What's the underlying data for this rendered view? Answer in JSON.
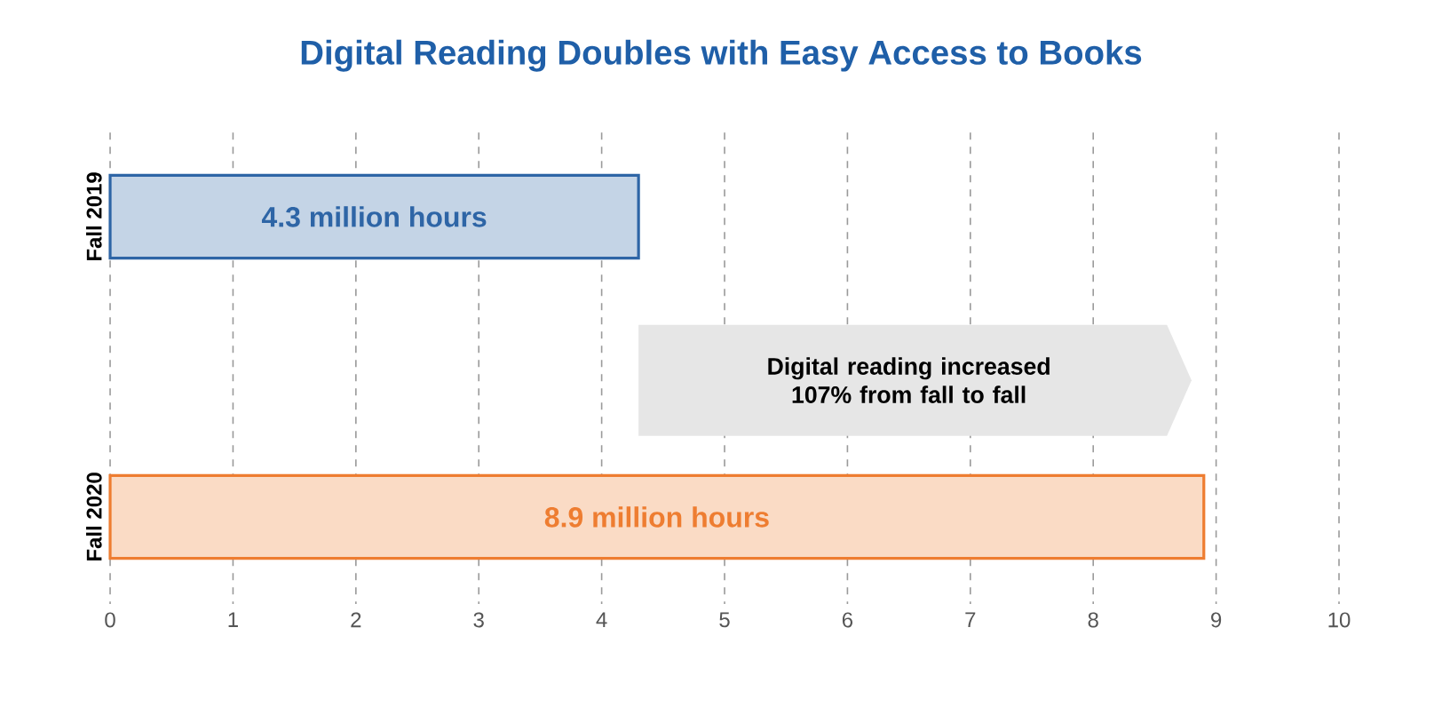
{
  "chart_data": {
    "type": "bar",
    "orientation": "horizontal",
    "title": "Digital Reading Doubles with Easy Access to Books",
    "categories": [
      "Fall 2019",
      "Fall 2020"
    ],
    "values": [
      4.3,
      8.9
    ],
    "colors": [
      "#2e65a6",
      "#ee7d31"
    ],
    "value_labels": [
      "4.3 million hours",
      "8.9 million hours"
    ],
    "annotations": [
      "Digital reading increased 107% from fall to fall"
    ],
    "xlim": [
      0,
      10
    ],
    "xticks": [
      0,
      1,
      2,
      3,
      4,
      5,
      6,
      7,
      8,
      9,
      10
    ],
    "grid": "x"
  }
}
